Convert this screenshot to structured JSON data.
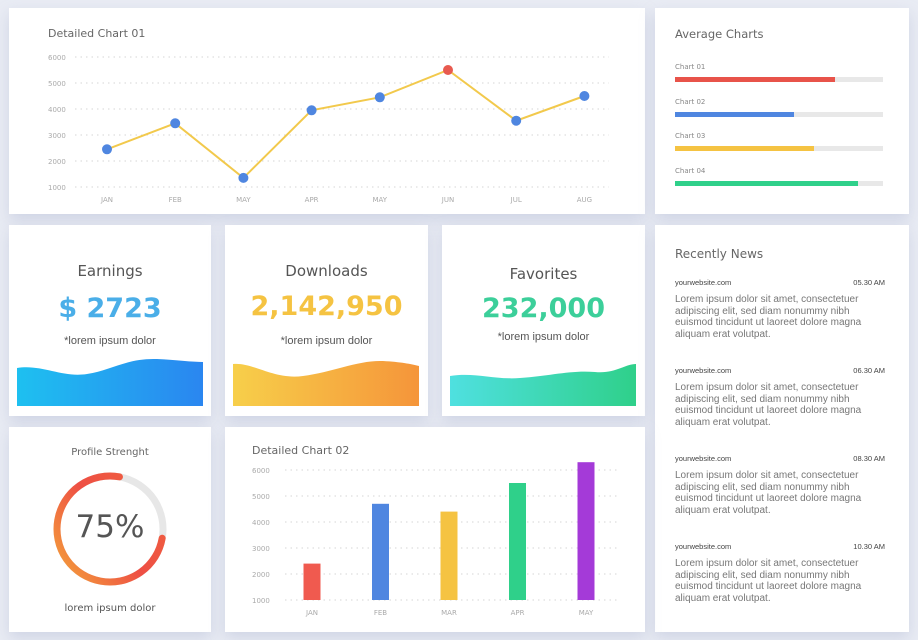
{
  "line_chart": {
    "title": "Detailed Chart 01",
    "chart_data": {
      "type": "line",
      "categories": [
        "JAN",
        "FEB",
        "MAY",
        "APR",
        "MAY",
        "JUN",
        "JUL",
        "AUG"
      ],
      "values": [
        2450,
        3450,
        1350,
        3950,
        4450,
        5500,
        3550,
        4500
      ],
      "highlight_index": 5,
      "y_ticks": [
        "1000",
        "2000",
        "3000",
        "4000",
        "5000",
        "6000"
      ],
      "ylim": [
        1000,
        6000
      ],
      "grid": true,
      "line_color": "#f2c94c",
      "point_color": "#4f86e0",
      "highlight_color": "#e85a4f"
    }
  },
  "average": {
    "title": "Average Charts",
    "bars": [
      {
        "label": "Chart 01",
        "value": 0.77,
        "color": "#e8534a"
      },
      {
        "label": "Chart 02",
        "value": 0.57,
        "color": "#4f86e0"
      },
      {
        "label": "Chart 03",
        "value": 0.67,
        "color": "#f5c342"
      },
      {
        "label": "Chart 04",
        "value": 0.88,
        "color": "#2fd08a"
      }
    ]
  },
  "stats": [
    {
      "title": "Earnings",
      "value": "$ 2723",
      "sub": "*lorem ipsum dolor",
      "color": "#4aaee8"
    },
    {
      "title": "Downloads",
      "value": "2,142,950",
      "sub": "*lorem ipsum dolor",
      "color": "#f5c342"
    },
    {
      "title": "Favorites",
      "value": "232,000",
      "sub": "*lorem ipsum dolor",
      "color": "#3ccf9a"
    }
  ],
  "news": {
    "title": "Recently News",
    "items": [
      {
        "site": "yourwebsite.com",
        "time": "05.30 AM",
        "text": "Lorem ipsum dolor sit amet, consectetuer adipiscing elit, sed diam nonummy nibh euismod tincidunt ut laoreet dolore magna aliquam erat volutpat."
      },
      {
        "site": "yourwebsite.com",
        "time": "06.30 AM",
        "text": "Lorem ipsum dolor sit amet, consectetuer adipiscing elit, sed diam nonummy nibh euismod tincidunt ut laoreet dolore magna aliquam erat volutpat."
      },
      {
        "site": "yourwebsite.com",
        "time": "08.30 AM",
        "text": "Lorem ipsum dolor sit amet, consectetuer adipiscing elit, sed diam nonummy nibh euismod tincidunt ut laoreet dolore magna aliquam erat volutpat."
      },
      {
        "site": "yourwebsite.com",
        "time": "10.30 AM",
        "text": "Lorem ipsum dolor sit amet, consectetuer adipiscing elit, sed diam nonummy nibh euismod tincidunt ut laoreet dolore magna aliquam erat volutpat."
      }
    ]
  },
  "profile": {
    "title": "Profile Strenght",
    "percent": "75%",
    "value": 0.75,
    "footer": "lorem ipsum dolor"
  },
  "bar_chart": {
    "title": "Detailed Chart 02",
    "chart_data": {
      "type": "bar",
      "categories": [
        "JAN",
        "FEB",
        "MAR",
        "APR",
        "MAY"
      ],
      "values": [
        2400,
        4700,
        4400,
        5500,
        6300
      ],
      "colors": [
        "#f05a4f",
        "#4f86e0",
        "#f5c342",
        "#2fd08a",
        "#a43ad8"
      ],
      "y_ticks": [
        "1000",
        "2000",
        "3000",
        "4000",
        "5000",
        "6000"
      ],
      "ylim": [
        1000,
        6000
      ],
      "grid": true
    }
  }
}
